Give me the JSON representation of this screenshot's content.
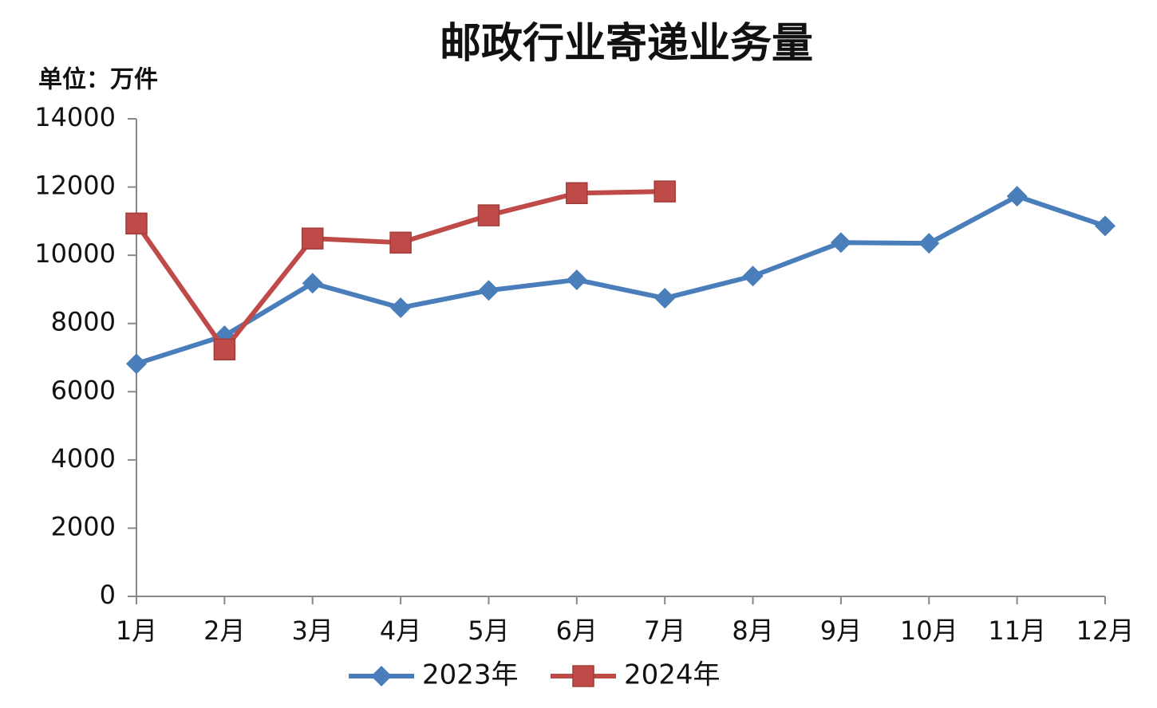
{
  "chart_data": {
    "type": "line",
    "title": "邮政行业寄递业务量",
    "y_label": "单位：万件",
    "categories": [
      "1月",
      "2月",
      "3月",
      "4月",
      "5月",
      "6月",
      "7月",
      "8月",
      "9月",
      "10月",
      "11月",
      "12月"
    ],
    "series": [
      {
        "name": "2023年",
        "color": "#4a7ebb",
        "marker": "diamond",
        "values": [
          6820,
          7640,
          9180,
          8460,
          8970,
          9280,
          8740,
          9390,
          10370,
          10350,
          11730,
          10860
        ]
      },
      {
        "name": "2024年",
        "color": "#be4b48",
        "marker": "square",
        "values": [
          10930,
          7240,
          10490,
          10370,
          11170,
          11820,
          11870,
          null,
          null,
          null,
          null,
          null
        ]
      }
    ],
    "ylim": [
      0,
      14000
    ],
    "yticks": [
      0,
      2000,
      4000,
      6000,
      8000,
      10000,
      12000,
      14000
    ],
    "grid": false,
    "legend": "bottom"
  }
}
